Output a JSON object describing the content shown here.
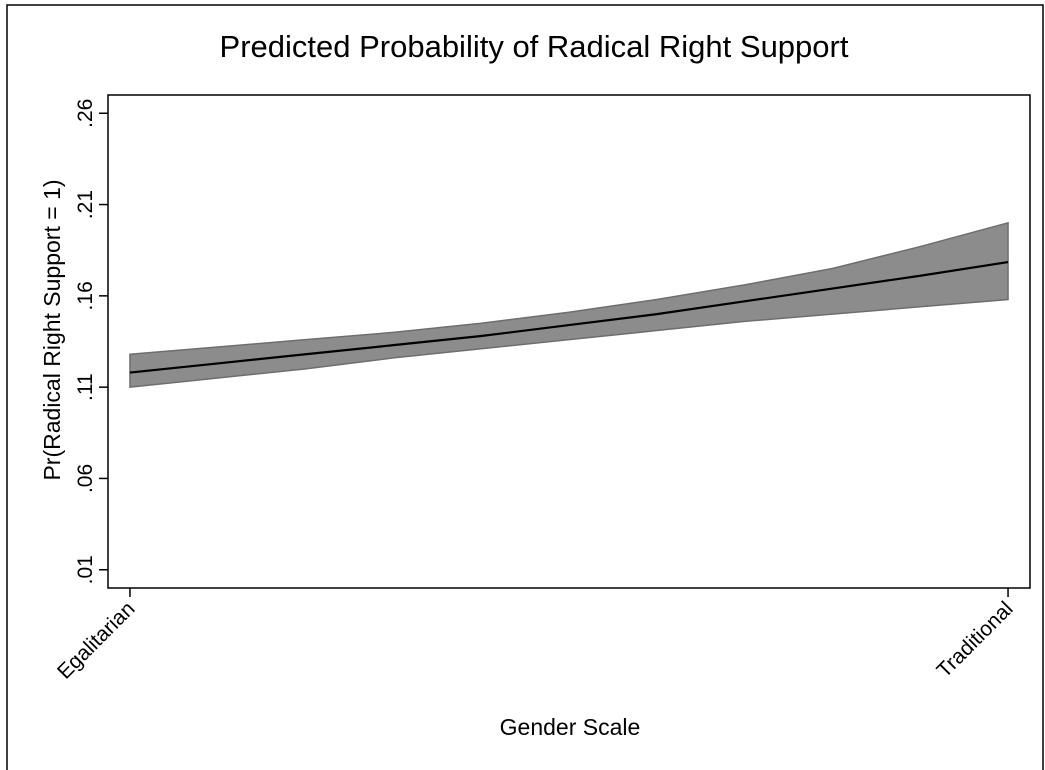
{
  "chart_data": {
    "type": "line",
    "title": "Predicted Probability of Radical Right Support",
    "x_label": "Gender Scale",
    "y_label": "Pr(Radical Right Support = 1)",
    "x": [
      0,
      0.1,
      0.2,
      0.3,
      0.4,
      0.5,
      0.6,
      0.7,
      0.8,
      0.9,
      1
    ],
    "values": [
      0.118,
      0.123,
      0.128,
      0.133,
      0.138,
      0.144,
      0.15,
      0.157,
      0.164,
      0.171,
      0.1785
    ],
    "color": "#000000",
    "band": {
      "lower": [
        0.11,
        0.115,
        0.12,
        0.126,
        0.131,
        0.136,
        0.141,
        0.146,
        0.15,
        0.154,
        0.158
      ],
      "upper": [
        0.128,
        0.132,
        0.136,
        0.14,
        0.145,
        0.151,
        0.158,
        0.166,
        0.175,
        0.187,
        0.2
      ],
      "color": "#8c8c8c"
    },
    "xlim": [
      -0.025,
      1.025
    ],
    "xticks": [
      {
        "value": 0,
        "label": "Egalitarian"
      },
      {
        "value": 1,
        "label": "Traditional"
      }
    ],
    "ylim": [
      0,
      0.27
    ],
    "yticks": [
      {
        "value": 0.01,
        "label": ".01"
      },
      {
        "value": 0.06,
        "label": ".06"
      },
      {
        "value": 0.11,
        "label": ".11"
      },
      {
        "value": 0.16,
        "label": ".16"
      },
      {
        "value": 0.21,
        "label": ".21"
      },
      {
        "value": 0.26,
        "label": ".26"
      }
    ],
    "grid": false
  }
}
